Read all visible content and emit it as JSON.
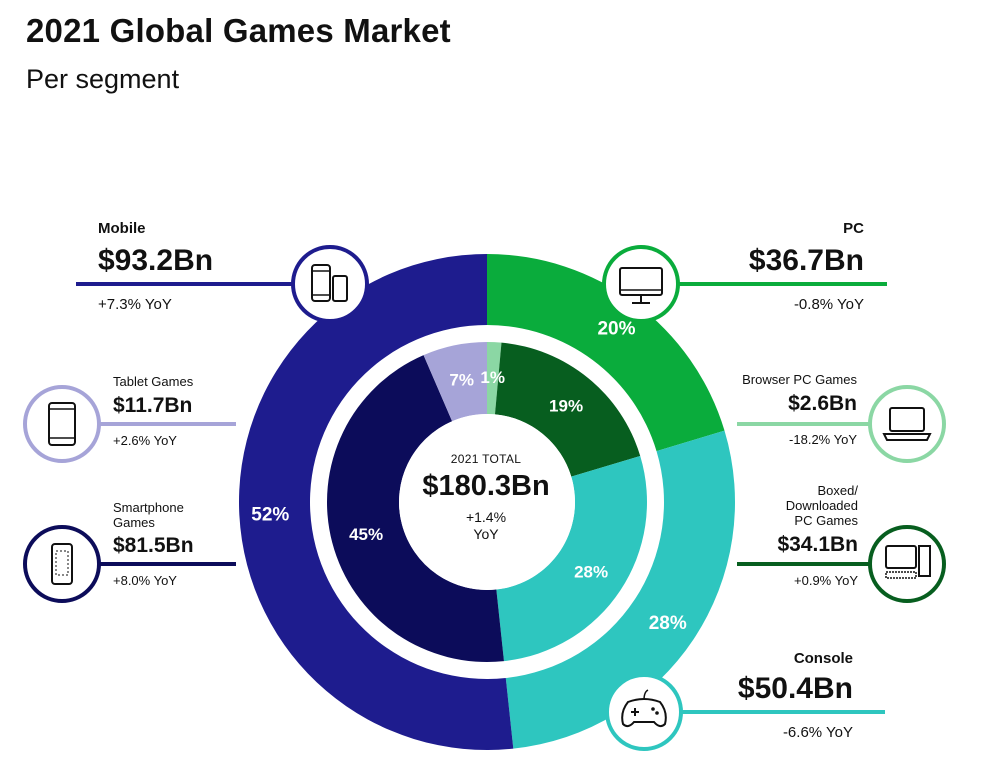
{
  "title": "2021 Global Games Market",
  "subtitle": "Per segment",
  "colors": {
    "mobile": "#1e1c8e",
    "smartphone": "#0c0c5a",
    "tablet": "#a6a4d8",
    "pc": "#0aac3c",
    "pc_boxed": "#075e1f",
    "pc_browser": "#8bd7a4",
    "console": "#2ec6bf"
  },
  "chart_data": {
    "type": "pie",
    "title": "2021 Global Games Market",
    "subtitle": "Per segment",
    "total": {
      "caption": "2021 TOTAL",
      "value": 180.3,
      "value_label": "$180.3Bn",
      "yoy": "+1.4%",
      "yoy_suffix": "YoY"
    },
    "outer_ring": [
      {
        "name": "Mobile",
        "value": 93.2,
        "value_label": "$93.2Bn",
        "yoy": "+7.3% YoY",
        "share": 52,
        "share_label": "52%",
        "color": "#1e1c8e",
        "icon": "mobile-devices-icon"
      },
      {
        "name": "PC",
        "value": 36.7,
        "value_label": "$36.7Bn",
        "yoy": "-0.8% YoY",
        "share": 20,
        "share_label": "20%",
        "color": "#0aac3c",
        "icon": "monitor-icon"
      },
      {
        "name": "Console",
        "value": 50.4,
        "value_label": "$50.4Bn",
        "yoy": "-6.6% YoY",
        "share": 28,
        "share_label": "28%",
        "color": "#2ec6bf",
        "icon": "gamepad-icon"
      }
    ],
    "inner_ring": [
      {
        "name": "Smartphone Games",
        "value": 81.5,
        "value_label": "$81.5Bn",
        "yoy": "+8.0% YoY",
        "share": 45,
        "share_label": "45%",
        "color": "#0c0c5a",
        "icon": "smartphone-icon"
      },
      {
        "name": "Tablet Games",
        "value": 11.7,
        "value_label": "$11.7Bn",
        "yoy": "+2.6% YoY",
        "share": 7,
        "share_label": "7%",
        "color": "#a6a4d8",
        "icon": "tablet-icon"
      },
      {
        "name": "Browser PC Games",
        "value": 2.6,
        "value_label": "$2.6Bn",
        "yoy": "-18.2% YoY",
        "share": 1,
        "share_label": "1%",
        "color": "#8bd7a4",
        "icon": "laptop-icon"
      },
      {
        "name": "Boxed/ Downloaded PC Games",
        "value": 34.1,
        "value_label": "$34.1Bn",
        "yoy": "+0.9% YoY",
        "share": 19,
        "share_label": "19%",
        "color": "#075e1f",
        "icon": "desktop-computer-icon"
      },
      {
        "name": "Console",
        "value": 50.4,
        "value_label": "$50.4Bn",
        "yoy": "-6.6% YoY",
        "share": 28,
        "share_label": "28%",
        "color": "#2ec6bf"
      }
    ]
  },
  "labels": {
    "mobile": {
      "name": "Mobile",
      "value": "$93.2Bn",
      "yoy": "+7.3% YoY"
    },
    "tablet": {
      "name": "Tablet Games",
      "value": "$11.7Bn",
      "yoy": "+2.6% YoY"
    },
    "smartphone": {
      "name_line1": "Smartphone",
      "name_line2": "Games",
      "value": "$81.5Bn",
      "yoy": "+8.0% YoY"
    },
    "pc": {
      "name": "PC",
      "value": "$36.7Bn",
      "yoy": "-0.8% YoY"
    },
    "browser": {
      "name": "Browser PC Games",
      "value": "$2.6Bn",
      "yoy": "-18.2% YoY"
    },
    "boxed": {
      "name_line1": "Boxed/",
      "name_line2": "Downloaded",
      "name_line3": "PC Games",
      "value": "$34.1Bn",
      "yoy": "+0.9% YoY"
    },
    "console": {
      "name": "Console",
      "value": "$50.4Bn",
      "yoy": "-6.6% YoY"
    }
  }
}
